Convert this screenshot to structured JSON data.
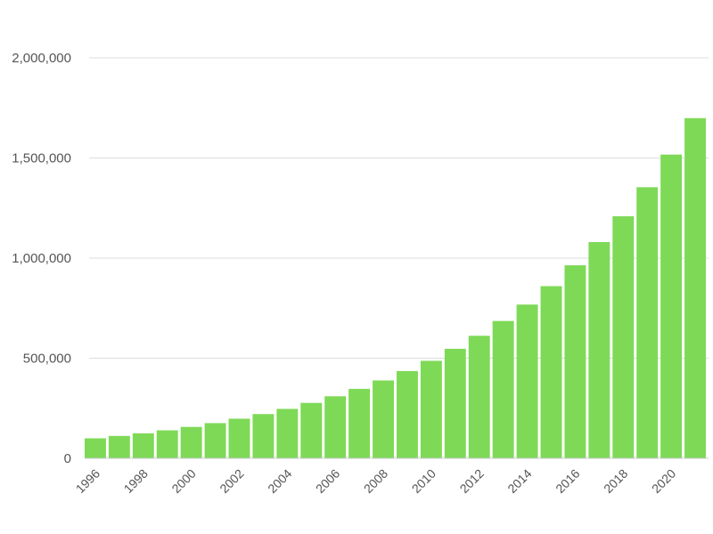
{
  "chart_data": {
    "type": "bar",
    "title": "",
    "xlabel": "",
    "ylabel": "",
    "categories": [
      "1996",
      "1997",
      "1998",
      "1999",
      "2000",
      "2001",
      "2002",
      "2003",
      "2004",
      "2005",
      "2006",
      "2007",
      "2008",
      "2009",
      "2010",
      "2011",
      "2012",
      "2013",
      "2014",
      "2015",
      "2016",
      "2017",
      "2018",
      "2019",
      "2020",
      "2021"
    ],
    "x_tick_labels": [
      "1996",
      "1998",
      "2000",
      "2002",
      "2004",
      "2006",
      "2008",
      "2010",
      "2012",
      "2014",
      "2016",
      "2018",
      "2020"
    ],
    "values": [
      100000,
      112000,
      125000,
      140000,
      157000,
      176000,
      198000,
      221000,
      247000,
      277000,
      310000,
      347000,
      389000,
      436000,
      487000,
      547000,
      612000,
      686000,
      768000,
      860000,
      964000,
      1080000,
      1209000,
      1354000,
      1517000,
      1699000
    ],
    "ylim": [
      0,
      2000000
    ],
    "y_ticks": [
      0,
      500000,
      1000000,
      1500000,
      2000000
    ],
    "y_tick_labels": [
      "0",
      "500,000",
      "1,000,000",
      "1,500,000",
      "2,000,000"
    ],
    "grid": true,
    "legend": "none",
    "bar_color": "#7ed957"
  }
}
